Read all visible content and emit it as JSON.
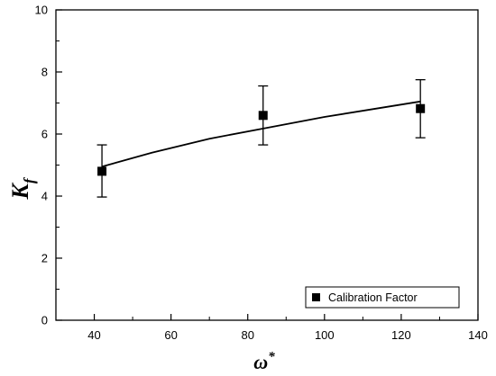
{
  "chart_data": {
    "type": "scatter",
    "x_axis": {
      "label": "ω",
      "label_superscript": "*",
      "range": [
        30,
        140
      ],
      "ticks": [
        40,
        60,
        80,
        100,
        120,
        140
      ],
      "tick_labels": [
        "40",
        "60",
        "80",
        "100",
        "120",
        "140"
      ]
    },
    "y_axis": {
      "label": "K",
      "label_subscript": "f",
      "range": [
        0,
        10
      ],
      "ticks": [
        0,
        2,
        4,
        6,
        8,
        10
      ],
      "tick_labels": [
        "0",
        "2",
        "4",
        "6",
        "8",
        "10"
      ]
    },
    "series": [
      {
        "name": "Calibration Factor",
        "marker": "square",
        "color": "#000000",
        "points": [
          {
            "x": 42,
            "y": 4.8,
            "err_low": 3.97,
            "err_high": 5.65
          },
          {
            "x": 84,
            "y": 6.6,
            "err_low": 5.65,
            "err_high": 7.55
          },
          {
            "x": 125,
            "y": 6.82,
            "err_low": 5.88,
            "err_high": 7.75
          }
        ]
      }
    ],
    "fit_curve": {
      "color": "#000000",
      "points": [
        {
          "x": 42,
          "y": 4.95
        },
        {
          "x": 55,
          "y": 5.4
        },
        {
          "x": 70,
          "y": 5.85
        },
        {
          "x": 85,
          "y": 6.2
        },
        {
          "x": 100,
          "y": 6.55
        },
        {
          "x": 115,
          "y": 6.85
        },
        {
          "x": 125,
          "y": 7.05
        }
      ]
    },
    "legend": {
      "placement": "bottom-right",
      "entries": [
        "Calibration Factor"
      ]
    },
    "grid": false
  }
}
